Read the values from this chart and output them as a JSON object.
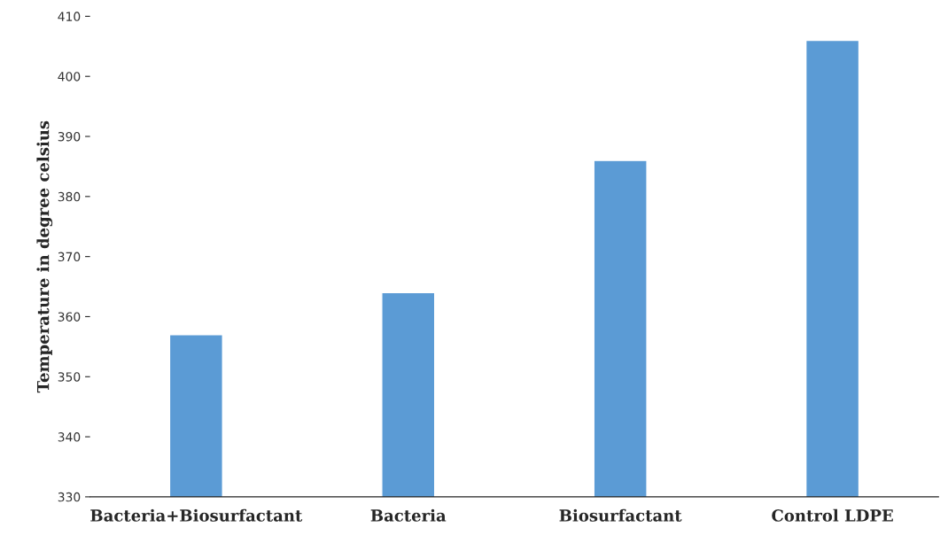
{
  "chart_data": {
    "type": "bar",
    "ylabel": "Temperature in degree celsius",
    "categories": [
      "Bacteria+Biosurfactant",
      "Bacteria",
      "Biosurfactant",
      "Control LDPE"
    ],
    "values": [
      357,
      364,
      386,
      406
    ],
    "color": "#5b9bd5",
    "ylim": [
      330,
      410
    ],
    "yticks": [
      330,
      340,
      350,
      360,
      370,
      380,
      390,
      400,
      410
    ],
    "grid": false
  }
}
